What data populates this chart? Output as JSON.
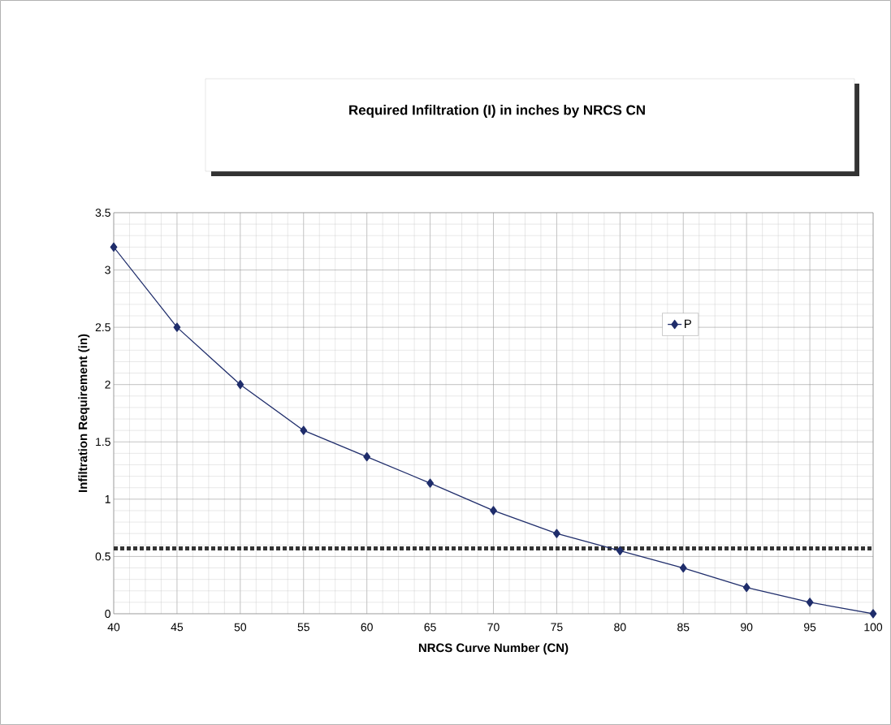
{
  "chart_data": {
    "type": "line",
    "title": "Required Infiltration (I) in inches by NRCS CN",
    "xlabel": "NRCS Curve Number (CN)",
    "ylabel": "Infiltration Requirement (in)",
    "categories": [
      "40",
      "45",
      "50",
      "55",
      "60",
      "65",
      "70",
      "75",
      "80",
      "85",
      "90",
      "95",
      "100"
    ],
    "series": [
      {
        "name": "P",
        "color": "#1f2d6b",
        "values": [
          3.2,
          2.5,
          2.0,
          1.6,
          1.37,
          1.14,
          0.9,
          0.7,
          0.55,
          0.4,
          0.23,
          0.1,
          0.0
        ]
      }
    ],
    "ylim": [
      0,
      3.5
    ],
    "yticks": [
      0,
      0.5,
      1,
      1.5,
      2,
      2.5,
      3,
      3.5
    ],
    "ref_lines": [
      {
        "axis": "y",
        "value": 0.57,
        "color": "#333333",
        "line_style": "dotted"
      }
    ],
    "grid": true,
    "legend": "right",
    "marker": "diamond",
    "line_style": "solid"
  }
}
